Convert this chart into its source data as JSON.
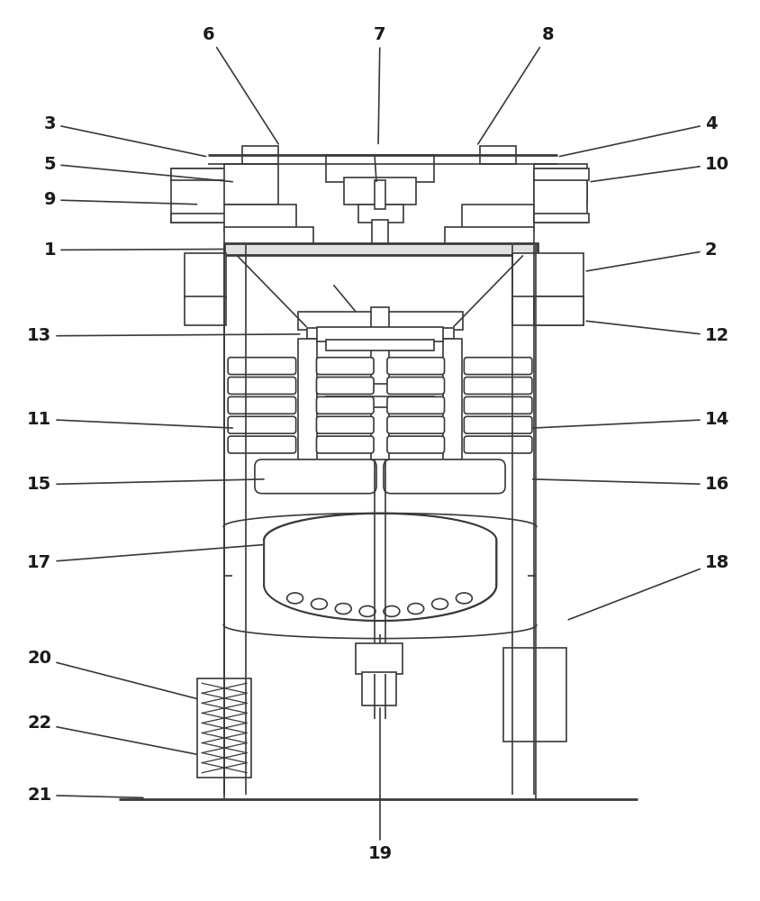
{
  "bg_color": "#ffffff",
  "line_color": "#3a3a3a",
  "label_color": "#1a1a1a",
  "fig_width": 8.44,
  "fig_height": 10.0
}
